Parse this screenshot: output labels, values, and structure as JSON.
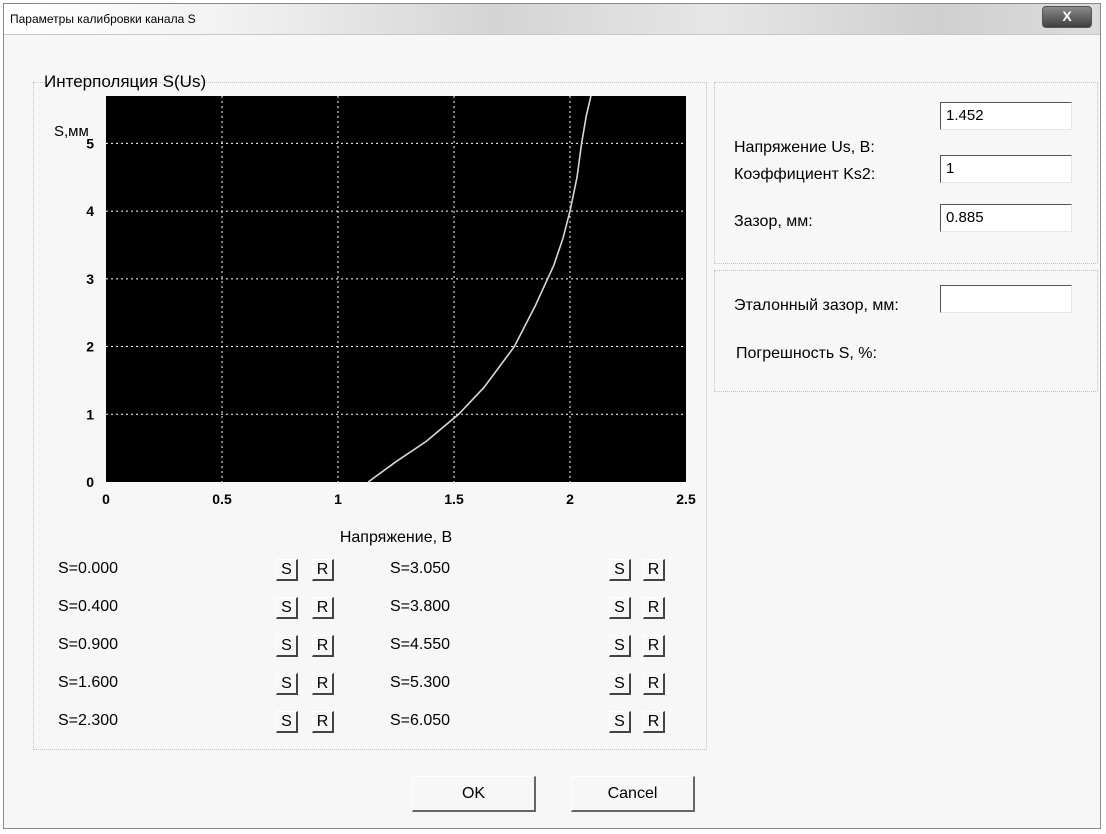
{
  "window": {
    "title": "Параметры калибровки канала S",
    "close_label": "X"
  },
  "plot": {
    "title": "Интерполяция S(Us)",
    "ylabel": "S,мм",
    "xlabel": "Напряжение, В"
  },
  "chart_data": {
    "type": "line",
    "title": "Интерполяция S(Us)",
    "xlabel": "Напряжение, В",
    "ylabel": "S,мм",
    "xlim": [
      0,
      2.5
    ],
    "ylim": [
      0,
      5.7
    ],
    "xticks": [
      "0",
      "0.5",
      "1",
      "1.5",
      "2",
      "2.5"
    ],
    "yticks": [
      "0",
      "1",
      "2",
      "3",
      "4",
      "5"
    ],
    "grid": true,
    "background_color": "#000000",
    "line_color": "#d8d8d8",
    "grid_color": "#ffffff",
    "series": [
      {
        "x": [
          1.13,
          1.25,
          1.38,
          1.52,
          1.63,
          1.76,
          1.85,
          1.93,
          1.97,
          2.0,
          2.03,
          2.05,
          2.07,
          2.09
        ],
        "y": [
          0.0,
          0.3,
          0.6,
          1.0,
          1.4,
          2.0,
          2.6,
          3.2,
          3.6,
          4.0,
          4.5,
          5.0,
          5.4,
          5.7
        ]
      }
    ]
  },
  "fields": {
    "voltage_label": "Напряжение Us, В:",
    "voltage_value": "1.452",
    "coef_label": "Коэффициент Ks2:",
    "coef_value": "1",
    "gap_label": "Зазор, мм:",
    "gap_value": "0.885",
    "ref_gap_label": "Эталонный зазор, мм:",
    "ref_gap_value": "",
    "error_label": "Погрешность S, %:"
  },
  "points": {
    "set_label": "S",
    "reset_label": "R",
    "left": [
      "S=0.000",
      "S=0.400",
      "S=0.900",
      "S=1.600",
      "S=2.300"
    ],
    "right": [
      "S=3.050",
      "S=3.800",
      "S=4.550",
      "S=5.300",
      "S=6.050"
    ]
  },
  "buttons": {
    "ok_label": "OK",
    "cancel_label": "Cancel"
  }
}
